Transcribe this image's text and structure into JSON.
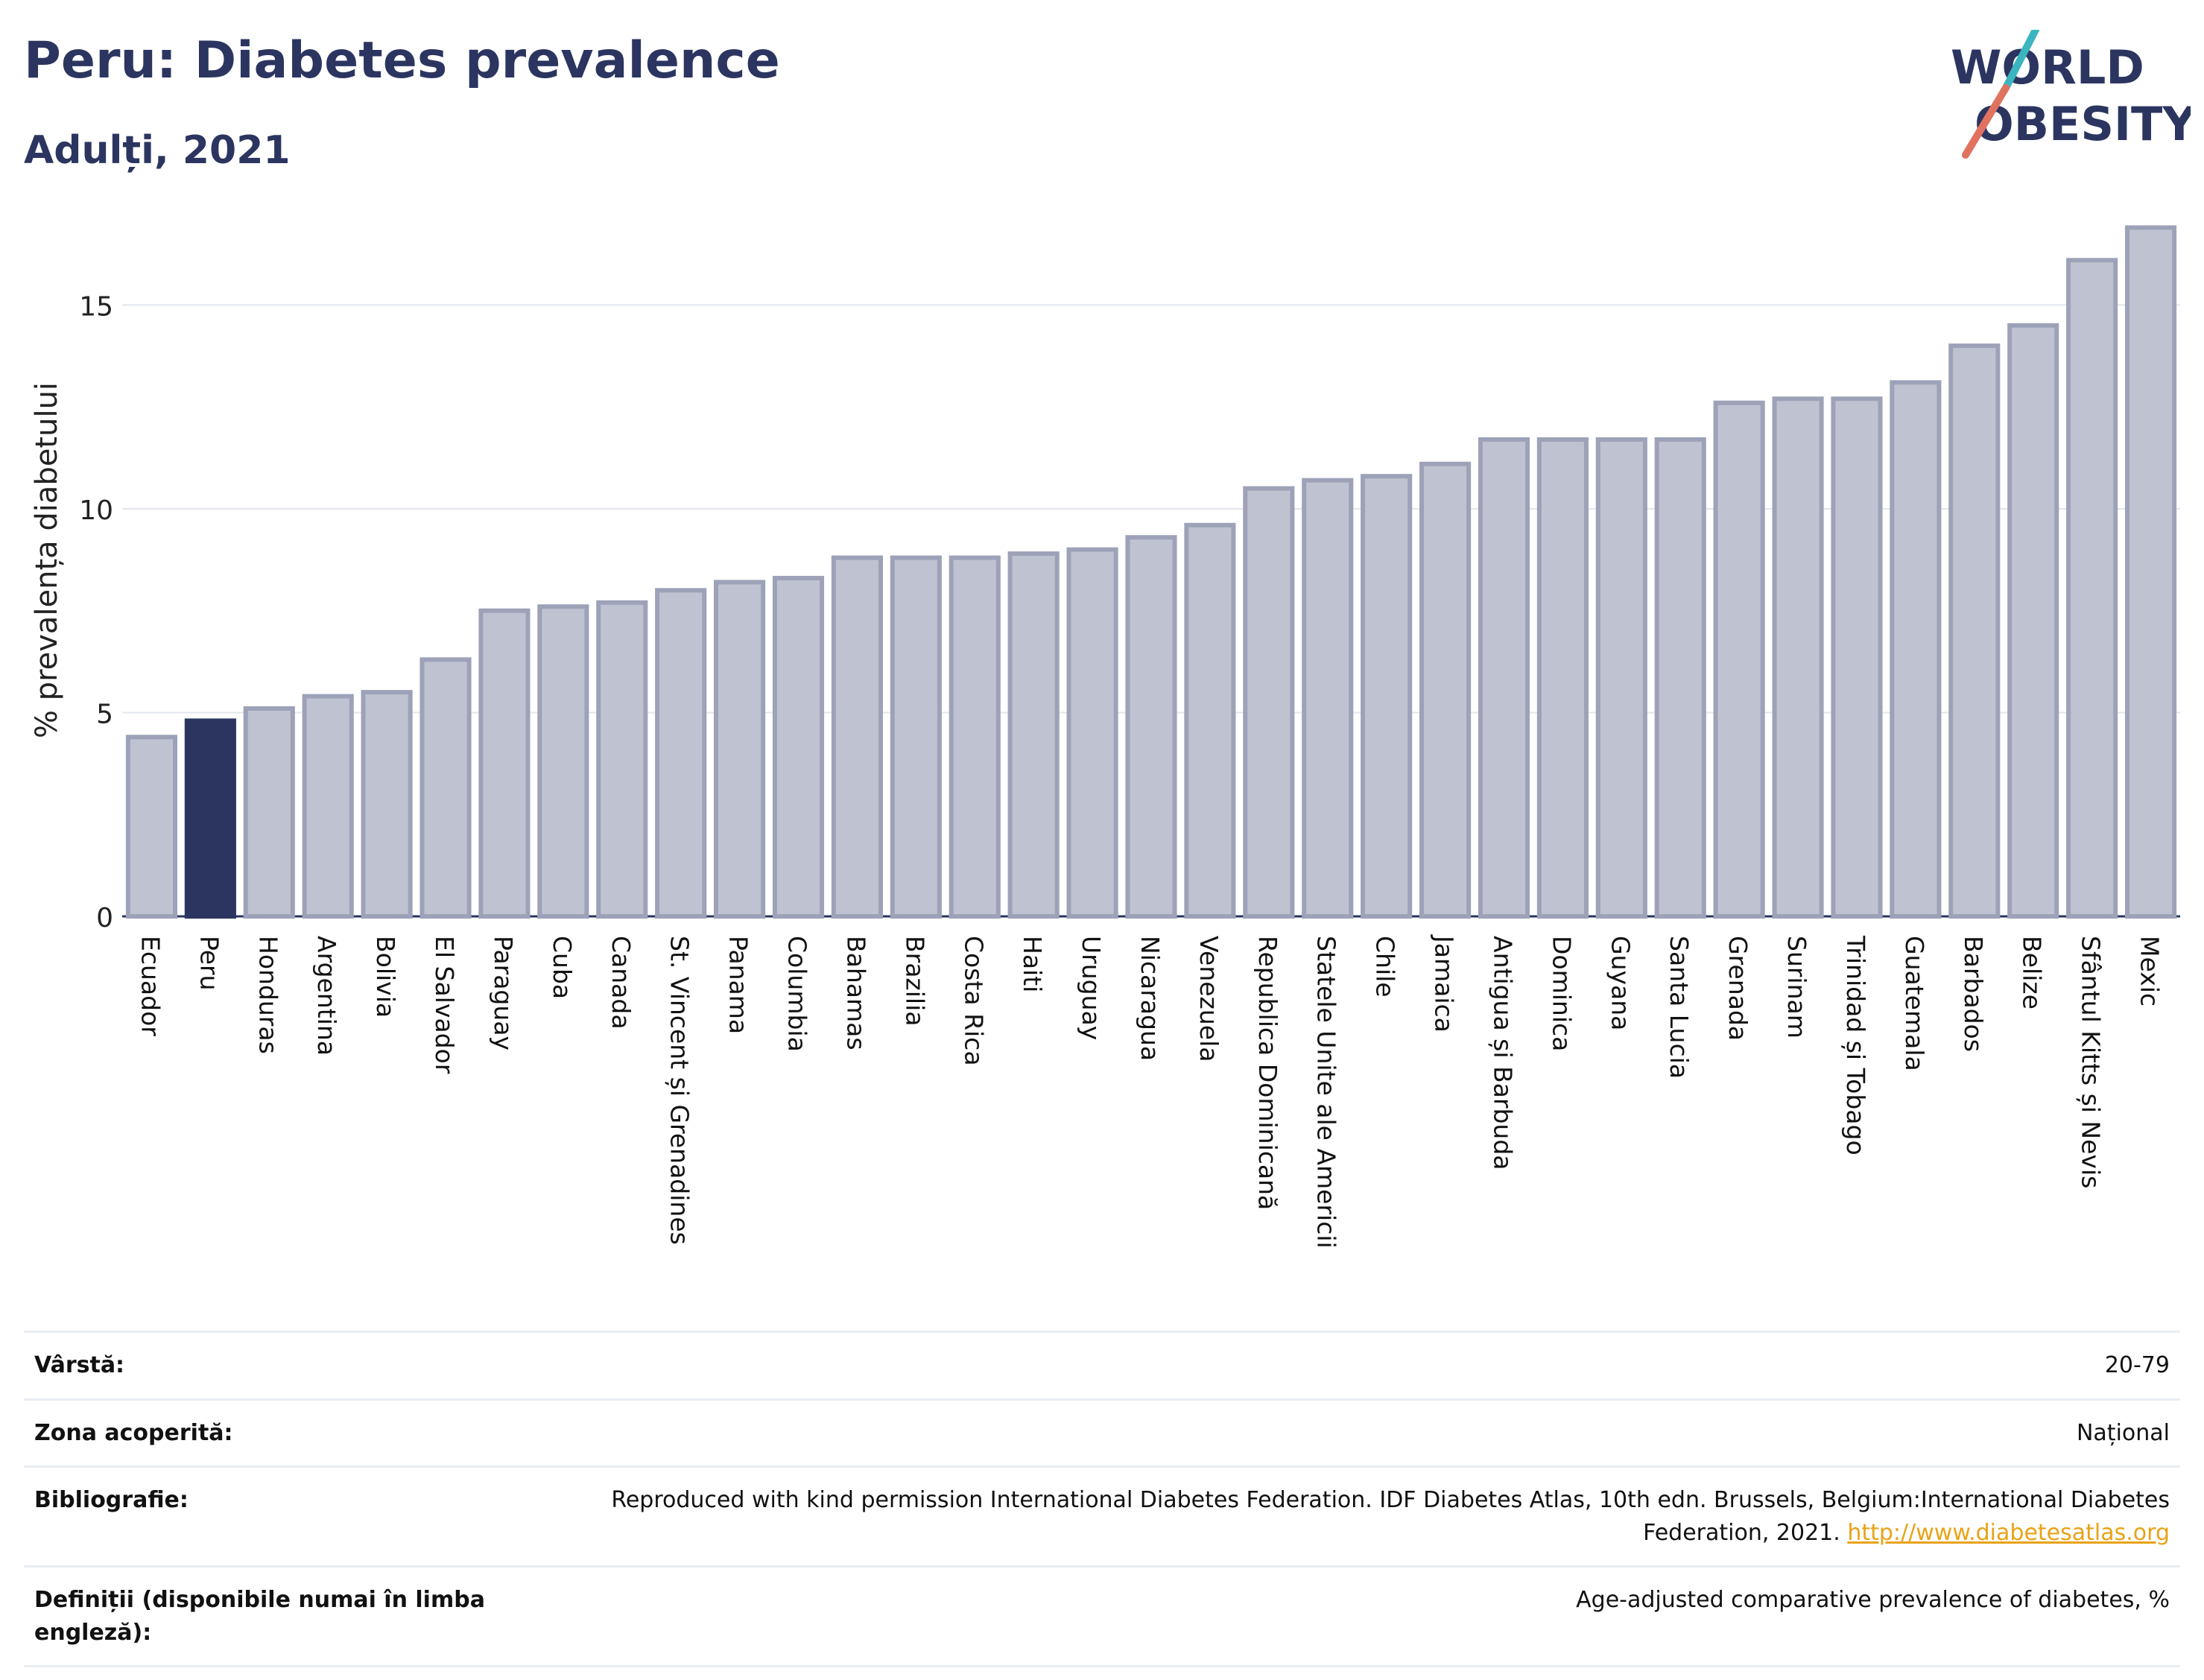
{
  "header": {
    "title": "Peru: Diabetes prevalence",
    "subtitle": "Adulți, 2021"
  },
  "logo": {
    "line1": "WORLD",
    "line2": "OBESITY",
    "accent_colors": [
      "#3bb6c0",
      "#e0735f"
    ]
  },
  "chart_data": {
    "type": "bar",
    "ylabel": "% prevalența diabetului",
    "xlabel": "",
    "ylim": [
      0,
      17
    ],
    "yticks": [
      0,
      5,
      10,
      15
    ],
    "grid": true,
    "highlight": "Peru",
    "colors": {
      "bar": "#bfc3d1",
      "bar_edge": "#9da2b8",
      "highlight": "#2b3560"
    },
    "categories": [
      "Ecuador",
      "Peru",
      "Honduras",
      "Argentina",
      "Bolivia",
      "El Salvador",
      "Paraguay",
      "Cuba",
      "Canada",
      "St. Vincent și Grenadines",
      "Panama",
      "Columbia",
      "Bahamas",
      "Brazilia",
      "Costa Rica",
      "Haiti",
      "Uruguay",
      "Nicaragua",
      "Venezuela",
      "Republica Dominicană",
      "Statele Unite ale Americii",
      "Chile",
      "Jamaica",
      "Antigua și Barbuda",
      "Dominica",
      "Guyana",
      "Santa Lucia",
      "Grenada",
      "Surinam",
      "Trinidad și Tobago",
      "Guatemala",
      "Barbados",
      "Belize",
      "Sfântul Kitts și Nevis",
      "Mexic"
    ],
    "values": [
      4.4,
      4.8,
      5.1,
      5.4,
      5.5,
      6.3,
      7.5,
      7.6,
      7.7,
      8.0,
      8.2,
      8.3,
      8.8,
      8.8,
      8.8,
      8.9,
      9.0,
      9.3,
      9.6,
      10.5,
      10.7,
      10.8,
      11.1,
      11.7,
      11.7,
      11.7,
      11.7,
      12.6,
      12.7,
      12.7,
      13.1,
      14.0,
      14.5,
      16.1,
      16.9
    ]
  },
  "info": {
    "rows": [
      {
        "label": "Vârstă:",
        "value": "20-79"
      },
      {
        "label": "Zona acoperită:",
        "value": "Național"
      },
      {
        "label": "Bibliografie:",
        "value": "Reproduced with kind permission International Diabetes Federation.  IDF Diabetes Atlas, 10th edn. Brussels, Belgium:International Diabetes Federation, 2021.",
        "link": "http://www.diabetesatlas.org"
      },
      {
        "label": "Definiții (disponibile numai în limba engleză):",
        "value": "Age-adjusted comparative prevalence of diabetes, %"
      }
    ]
  }
}
